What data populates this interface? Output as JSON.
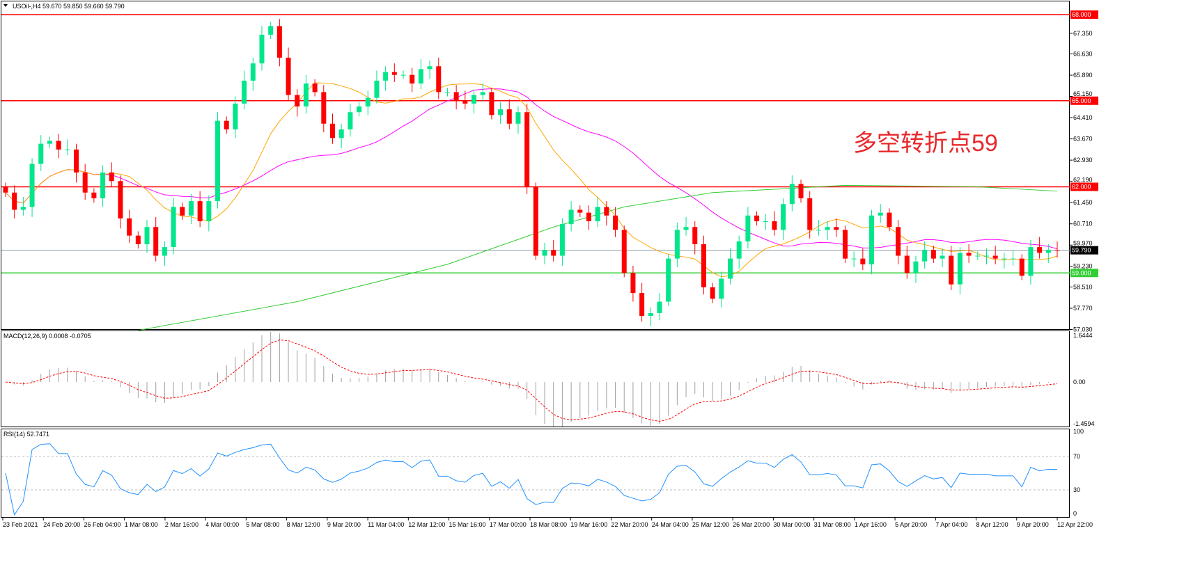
{
  "header": {
    "symbol_info": "USOil-,H4  59.670 59.850 59.660 59.790"
  },
  "annotation": "多空转折点59",
  "colors": {
    "bull": "#00e68a",
    "bear": "#ff0000",
    "ma_fast": "#ffa500",
    "ma_mid": "#ff00ff",
    "ma_slow": "#32cd32",
    "level_red": "#ff0000",
    "level_green": "#32cd32",
    "rsi": "#1e90ff",
    "macd_signal": "#ff0000",
    "macd_hist": "#a0a0a0"
  },
  "chart_data": [
    {
      "type": "candlestick",
      "name": "USOil-,H4",
      "ylim": [
        57.03,
        68.6
      ],
      "price_ticks": [
        "67.350",
        "66.630",
        "65.890",
        "65.150",
        "64.410",
        "63.670",
        "62.930",
        "62.190",
        "61.450",
        "60.710",
        "59.970",
        "59.230",
        "58.510",
        "57.770",
        "57.030"
      ],
      "levels": [
        {
          "value": 68.0,
          "label": "68.000",
          "color": "red"
        },
        {
          "value": 65.0,
          "label": "65.000",
          "color": "red"
        },
        {
          "value": 62.0,
          "label": "62.000",
          "color": "red"
        },
        {
          "value": 59.0,
          "label": "59.000",
          "color": "green"
        }
      ],
      "current_price": {
        "value": 59.79,
        "label": "59.790"
      },
      "closes": [
        61.8,
        61.2,
        61.3,
        62.8,
        63.5,
        63.6,
        63.3,
        63.3,
        62.5,
        61.8,
        61.6,
        62.5,
        62.2,
        60.9,
        60.3,
        60.0,
        60.6,
        59.6,
        59.9,
        61.3,
        61.0,
        61.5,
        60.8,
        61.5,
        64.3,
        64.0,
        64.9,
        65.7,
        66.3,
        67.3,
        67.6,
        66.5,
        65.2,
        64.8,
        65.6,
        65.3,
        64.2,
        63.7,
        64.0,
        64.6,
        64.8,
        65.1,
        65.7,
        66.0,
        65.9,
        65.9,
        65.6,
        66.1,
        66.2,
        65.3,
        65.3,
        65.0,
        64.9,
        65.2,
        65.3,
        64.5,
        64.7,
        64.2,
        64.6,
        62.0,
        59.6,
        59.8,
        59.6,
        60.7,
        61.2,
        61.1,
        60.8,
        61.3,
        61.0,
        60.5,
        59.0,
        58.3,
        57.5,
        57.6,
        58.0,
        59.5,
        60.5,
        60.6,
        60.0,
        58.5,
        58.1,
        58.8,
        59.5,
        60.1,
        61.0,
        60.8,
        60.8,
        60.5,
        61.4,
        62.1,
        61.6,
        60.5,
        60.5,
        60.6,
        60.5,
        59.5,
        59.5,
        59.3,
        61.0,
        61.1,
        60.6,
        59.6,
        59.0,
        59.4,
        59.8,
        59.5,
        59.6,
        58.6,
        59.7,
        59.6,
        59.6,
        59.6,
        59.5,
        59.5,
        59.5,
        58.9,
        59.9,
        59.7,
        59.8,
        59.79
      ],
      "ma_fast_period": 12,
      "ma_mid_period": 30,
      "ma_slow_points": [
        [
          15,
          57.0
        ],
        [
          33,
          58.0
        ],
        [
          50,
          59.3
        ],
        [
          62,
          60.6
        ],
        [
          70,
          61.3
        ],
        [
          80,
          61.8
        ],
        [
          95,
          62.05
        ],
        [
          110,
          62.0
        ],
        [
          119,
          61.85
        ]
      ],
      "x_tick_labels": [
        "23 Feb 2021",
        "24 Feb 20:00",
        "26 Feb 04:00",
        "1 Mar 08:00",
        "2 Mar 16:00",
        "4 Mar 00:00",
        "5 Mar 08:00",
        "8 Mar 12:00",
        "9 Mar 20:00",
        "11 Mar 04:00",
        "12 Mar 12:00",
        "15 Mar 16:00",
        "17 Mar 00:00",
        "18 Mar 08:00",
        "19 Mar 16:00",
        "22 Mar 20:00",
        "24 Mar 04:00",
        "25 Mar 12:00",
        "26 Mar 20:00",
        "30 Mar 00:00",
        "31 Mar 08:00",
        "1 Apr 16:00",
        "5 Apr 20:00",
        "7 Apr 04:00",
        "8 Apr 12:00",
        "9 Apr 20:00",
        "12 Apr 22:00"
      ]
    },
    {
      "type": "bar+line",
      "name": "MACD(12,26,9) 0.0008 -0.0705",
      "ylim": [
        -1.4594,
        1.6444
      ],
      "ticks": [
        "1.6444",
        "0.00",
        "-1.4594"
      ]
    },
    {
      "type": "line",
      "name": "RSI(14) 52.7471",
      "ylim": [
        0,
        100
      ],
      "ticks": [
        "100",
        "70",
        "30",
        "0"
      ],
      "levels": [
        30,
        70
      ]
    }
  ]
}
